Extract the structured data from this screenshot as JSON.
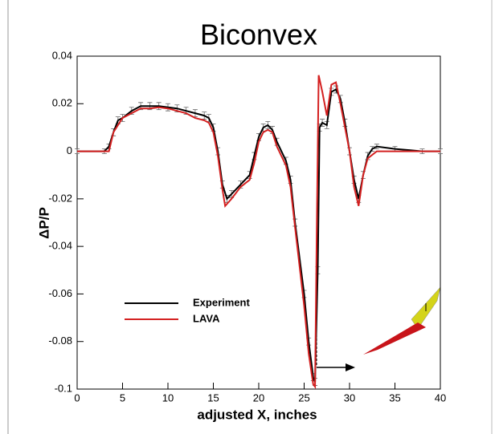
{
  "chart_data": {
    "type": "line",
    "title": "Biconvex",
    "xlabel": "adjusted X, inches",
    "ylabel": "ΔP/P",
    "xlim": [
      0,
      40
    ],
    "xticks": [
      0,
      5,
      10,
      15,
      20,
      25,
      30,
      35,
      40
    ],
    "ylim": [
      -0.1,
      0.04
    ],
    "yticks": [
      -0.1,
      -0.08,
      -0.06,
      -0.04,
      -0.02,
      0,
      0.02,
      0.04
    ],
    "series": [
      {
        "name": "Experiment",
        "color": "#000000",
        "x": [
          0,
          3,
          3.5,
          4,
          4.5,
          5,
          6,
          7,
          8,
          9,
          10,
          11,
          12,
          13,
          14,
          14.5,
          15,
          15.5,
          16,
          16.5,
          17,
          18,
          19,
          19.5,
          20,
          20.5,
          21,
          21.5,
          22,
          23,
          23.5,
          24,
          25,
          25.5,
          26,
          26.2,
          26.5,
          26.7,
          27,
          27.5,
          28,
          28.5,
          29,
          29.5,
          30,
          30.5,
          31,
          31.5,
          32,
          32.5,
          33,
          35,
          38,
          40
        ],
        "values": [
          0,
          0,
          0.002,
          0.008,
          0.013,
          0.014,
          0.017,
          0.019,
          0.019,
          0.019,
          0.0185,
          0.018,
          0.017,
          0.016,
          0.015,
          0.014,
          0.01,
          0,
          -0.014,
          -0.02,
          -0.018,
          -0.014,
          -0.01,
          -0.002,
          0.006,
          0.01,
          0.011,
          0.009,
          0.004,
          -0.004,
          -0.012,
          -0.03,
          -0.06,
          -0.08,
          -0.095,
          -0.097,
          -0.05,
          0.01,
          0.012,
          0.011,
          0.025,
          0.026,
          0.022,
          0.012,
          0,
          -0.012,
          -0.02,
          -0.01,
          -0.002,
          0.001,
          0.002,
          0.001,
          0,
          0
        ],
        "errors": [
          0.001,
          0.001,
          0.001,
          0.0015,
          0.0015,
          0.0015,
          0.0015,
          0.0015,
          0.0015,
          0.0015,
          0.0015,
          0.0015,
          0.0015,
          0.0015,
          0.0015,
          0.0015,
          0.0015,
          0.0015,
          0.0015,
          0.0015,
          0.0015,
          0.0015,
          0.0015,
          0.0015,
          0.0015,
          0.0015,
          0.0015,
          0.0015,
          0.0015,
          0.0015,
          0.0015,
          0.0015,
          0.0015,
          0.0015,
          0.0015,
          0.0015,
          0.0015,
          0.0015,
          0.0015,
          0.0015,
          0.0015,
          0.0015,
          0.0015,
          0.0015,
          0.0015,
          0.0015,
          0.0015,
          0.0015,
          0.0015,
          0.001,
          0.001,
          0.001,
          0.001,
          0.001
        ]
      },
      {
        "name": "LAVA",
        "color": "#d42020",
        "x": [
          0,
          3.5,
          4,
          5,
          6,
          7,
          8,
          9,
          10,
          11,
          12,
          13,
          14,
          14.5,
          15,
          15.5,
          16,
          16.3,
          17,
          18,
          19,
          19.5,
          20,
          20.5,
          21,
          21.5,
          22,
          23,
          23.5,
          24,
          25,
          25.5,
          26,
          26.2,
          26.4,
          26.6,
          27,
          27.5,
          28,
          28.5,
          29,
          29.5,
          30,
          30.5,
          31,
          31.5,
          32,
          33,
          35,
          40
        ],
        "values": [
          0,
          0,
          0.008,
          0.014,
          0.016,
          0.018,
          0.018,
          0.0185,
          0.018,
          0.017,
          0.016,
          0.014,
          0.013,
          0.012,
          0.008,
          -0.002,
          -0.016,
          -0.023,
          -0.02,
          -0.015,
          -0.012,
          -0.005,
          0.004,
          0.008,
          0.009,
          0.008,
          0.002,
          -0.006,
          -0.015,
          -0.032,
          -0.065,
          -0.085,
          -0.098,
          -0.099,
          -0.03,
          0.032,
          0.025,
          0.015,
          0.028,
          0.029,
          0.02,
          0.01,
          0,
          -0.015,
          -0.023,
          -0.01,
          -0.003,
          0,
          0,
          0
        ]
      }
    ]
  }
}
